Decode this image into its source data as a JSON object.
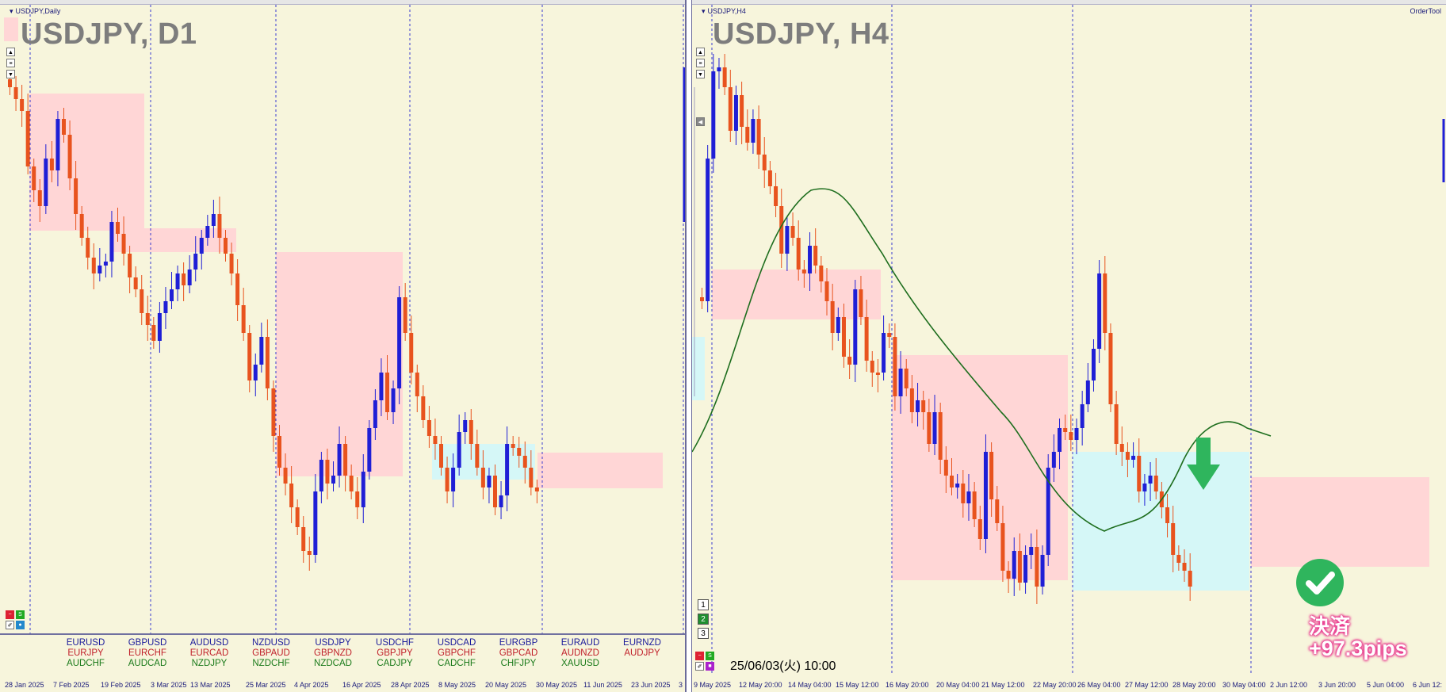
{
  "left_panel": {
    "small_title": "USDJPY,Daily",
    "big_title": "USDJPY, D1",
    "x_labels": [
      "28 Jan 2025",
      "7 Feb 2025",
      "19 Feb 2025",
      "3 Mar 2025",
      "13 Mar 2025",
      "25 Mar 2025",
      "4 Apr 2025",
      "16 Apr 2025",
      "28 Apr 2025",
      "8 May 2025",
      "20 May 2025",
      "30 May 2025",
      "11 Jun 2025",
      "23 Jun 2025",
      "3"
    ],
    "pairs": [
      [
        "EURUSD",
        "EURJPY",
        "AUDCHF"
      ],
      [
        "GBPUSD",
        "EURCHF",
        "AUDCAD"
      ],
      [
        "AUDUSD",
        "EURCAD",
        "NZDJPY"
      ],
      [
        "NZDUSD",
        "GBPAUD",
        "NZDCHF"
      ],
      [
        "USDJPY",
        "GBPNZD",
        "NZDCAD"
      ],
      [
        "USDCHF",
        "GBPJPY",
        "CADJPY"
      ],
      [
        "USDCAD",
        "GBPCHF",
        "CADCHF"
      ],
      [
        "EURGBP",
        "GBPCAD",
        "CHFJPY"
      ],
      [
        "EURAUD",
        "AUDNZD",
        "XAUUSD"
      ],
      [
        "EURNZD",
        "AUDJPY",
        ""
      ]
    ]
  },
  "right_panel": {
    "small_title": "USDJPY,H4",
    "big_title": "USDJPY, H4",
    "order_tool": "OrderTool",
    "x_labels": [
      "9 May 2025",
      "12 May 20:00",
      "14 May 04:00",
      "15 May 12:00",
      "16 May 20:00",
      "20 May 04:00",
      "21 May 12:00",
      "22 May 20:00",
      "26 May 04:00",
      "27 May 12:00",
      "28 May 20:00",
      "30 May 04:00",
      "2 Jun 12:00",
      "3 Jun 20:00",
      "5 Jun 04:00",
      "6 Jun 12:"
    ],
    "timeframe_buttons": [
      "1",
      "2",
      "3"
    ],
    "date_label": "25/06/03(火) 10:00",
    "settlement_label": "決済",
    "settlement_pips": "+97.3pips"
  },
  "colors": {
    "background": "#f7f5dc",
    "bull_candle": "#1f1fd6",
    "bear_candle": "#e8531e",
    "resistance_zone": "#ffd6d6",
    "support_zone": "#d5f7f7",
    "moving_average": "#1e6e1e",
    "arrow": "#2fb55d"
  },
  "icons": [
    "scroll-up-icon",
    "scroll-down-icon",
    "close-icon",
    "sell-arrow-icon",
    "check-icon"
  ]
}
